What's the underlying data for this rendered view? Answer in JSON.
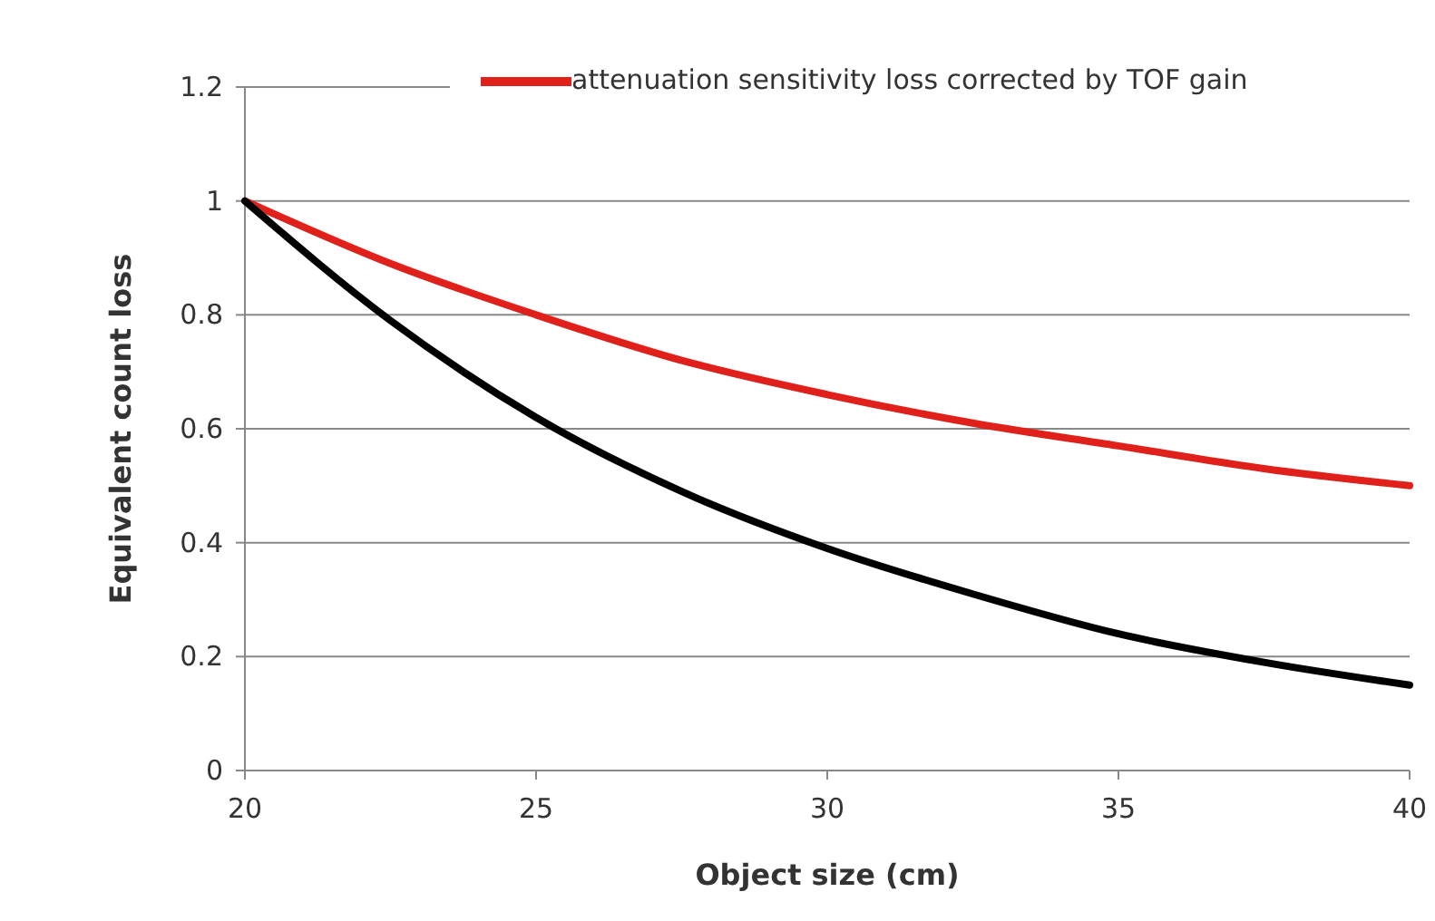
{
  "chart_data": {
    "type": "line",
    "xlabel": "Object size (cm)",
    "ylabel": "Equivalent count loss",
    "x": [
      20,
      22.5,
      25,
      27.5,
      30,
      32.5,
      35,
      37.5,
      40
    ],
    "series": [
      {
        "name": "attenuation sensitivity loss corrected by TOF gain",
        "color": "#e0201b",
        "values": [
          1,
          0.89,
          0.8,
          0.72,
          0.66,
          0.61,
          0.57,
          0.53,
          0.5
        ]
      },
      {
        "color": "#000000",
        "values": [
          1,
          0.79,
          0.62,
          0.49,
          0.39,
          0.31,
          0.24,
          0.19,
          0.15
        ]
      }
    ],
    "xlim": [
      20,
      40
    ],
    "xticks": [
      20,
      25,
      30,
      35,
      40
    ],
    "ylim": [
      0,
      1.2
    ],
    "yticks": [
      0,
      {
        "value": 0.2,
        "label": "0.2"
      },
      {
        "value": 0.4,
        "label": "0.4"
      },
      {
        "value": 0.6,
        "label": "0.6"
      },
      {
        "value": 0.8,
        "label": "0.8"
      },
      1,
      {
        "value": 1.2,
        "label": "1.2"
      }
    ],
    "grid": "y",
    "legend": "top right",
    "marker": "none",
    "line_style": "solid"
  }
}
